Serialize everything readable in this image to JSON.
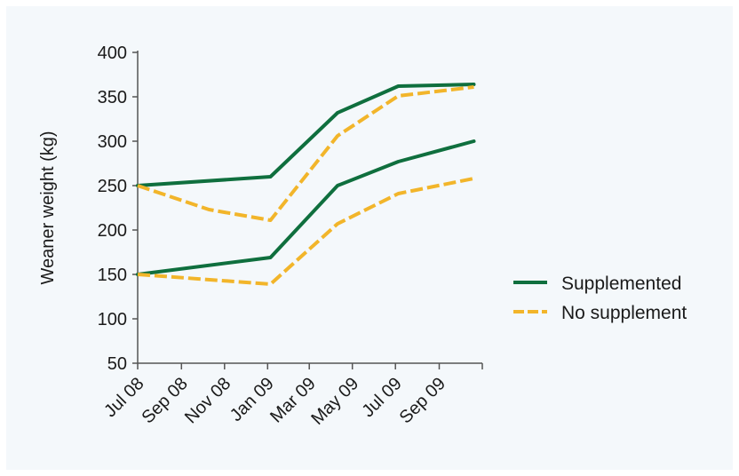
{
  "colors": {
    "supplemented": "#0f6f3e",
    "no_supplement": "#f2b52a",
    "background": "#f4f8fb",
    "axis": "#555555"
  },
  "chart_data": {
    "type": "line",
    "title": "",
    "xlabel": "",
    "ylabel": "Weaner weight (kg)",
    "ylim": [
      50,
      400
    ],
    "yticks": [
      50,
      100,
      150,
      200,
      250,
      300,
      350,
      400
    ],
    "xlim": [
      "2008-07-01",
      "2009-11-01"
    ],
    "xticks": [
      "Jul 08",
      "Sep 08",
      "Nov 08",
      "Jan 09",
      "Mar 09",
      "May 09",
      "Jul 09",
      "Sep 09"
    ],
    "xtick_dates": [
      "2008-07-01",
      "2008-09-01",
      "2008-11-01",
      "2009-01-01",
      "2009-03-01",
      "2009-05-01",
      "2009-07-01",
      "2009-09-01"
    ],
    "grid": false,
    "legend_position": "right",
    "series": [
      {
        "name": "Supplemented",
        "style": "solid",
        "group": "upper",
        "points": [
          [
            "2008-07-01",
            250
          ],
          [
            "2009-01-05",
            260
          ],
          [
            "2009-04-10",
            332
          ],
          [
            "2009-07-05",
            362
          ],
          [
            "2009-10-20",
            364
          ]
        ]
      },
      {
        "name": "No supplement",
        "style": "dashed",
        "group": "upper",
        "points": [
          [
            "2008-07-01",
            250
          ],
          [
            "2008-10-10",
            223
          ],
          [
            "2009-01-05",
            211
          ],
          [
            "2009-04-10",
            306
          ],
          [
            "2009-07-05",
            351
          ],
          [
            "2009-10-20",
            361
          ]
        ]
      },
      {
        "name": "Supplemented",
        "style": "solid",
        "group": "lower",
        "points": [
          [
            "2008-07-01",
            150
          ],
          [
            "2009-01-05",
            169
          ],
          [
            "2009-04-10",
            250
          ],
          [
            "2009-07-05",
            277
          ],
          [
            "2009-10-20",
            300
          ]
        ]
      },
      {
        "name": "No supplement",
        "style": "dashed",
        "group": "lower",
        "points": [
          [
            "2008-07-01",
            150
          ],
          [
            "2009-01-05",
            139
          ],
          [
            "2009-04-10",
            207
          ],
          [
            "2009-07-05",
            241
          ],
          [
            "2009-10-20",
            258
          ]
        ]
      }
    ],
    "legend": [
      {
        "label": "Supplemented",
        "style": "solid"
      },
      {
        "label": "No supplement",
        "style": "dashed"
      }
    ]
  }
}
